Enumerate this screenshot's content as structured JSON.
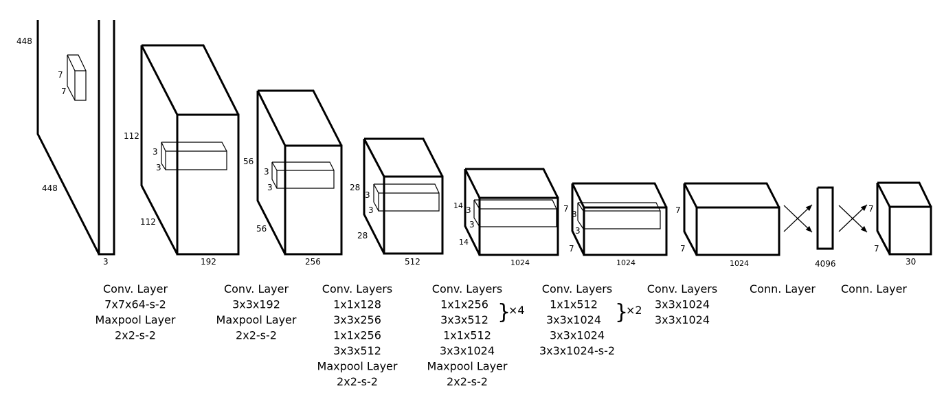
{
  "input": {
    "height": "448",
    "width": "448",
    "channels": "3",
    "kernel_h": "7",
    "kernel_w": "7"
  },
  "blocks": [
    {
      "h": "112",
      "w": "112",
      "d": "192",
      "k1": "3",
      "k2": "3"
    },
    {
      "h": "56",
      "w": "56",
      "d": "256",
      "k1": "3",
      "k2": "3"
    },
    {
      "h": "28",
      "w": "28",
      "d": "512",
      "k1": "3",
      "k2": "3"
    },
    {
      "h": "14",
      "w": "14",
      "d": "1024",
      "k1": "3",
      "k2": "3"
    },
    {
      "h": "7",
      "w": "7",
      "d": "1024",
      "k1": "3",
      "k2": "3"
    },
    {
      "h": "7",
      "w": "7",
      "d": "1024"
    },
    {
      "d": "4096"
    },
    {
      "h": "7",
      "w": "7",
      "d": "30"
    }
  ],
  "captions": [
    [
      "Conv. Layer",
      "7x7x64-s-2",
      "Maxpool Layer",
      "2x2-s-2"
    ],
    [
      "Conv. Layer",
      "3x3x192",
      "Maxpool Layer",
      "2x2-s-2"
    ],
    [
      "Conv. Layers",
      "1x1x128",
      "3x3x256",
      "1x1x256",
      "3x3x512",
      "Maxpool Layer",
      "2x2-s-2"
    ],
    [
      "Conv. Layers",
      "1x1x256",
      "3x3x512",
      "1x1x512",
      "3x3x1024",
      "Maxpool Layer",
      "2x2-s-2"
    ],
    [
      "Conv. Layers",
      "1x1x512",
      "3x3x1024",
      "3x3x1024",
      "3x3x1024-s-2"
    ],
    [
      "Conv. Layers",
      "3x3x1024",
      "3x3x1024"
    ],
    [
      "Conn. Layer"
    ],
    [
      "Conn. Layer"
    ]
  ],
  "repeats": [
    {
      "brace": "}",
      "count": "×4"
    },
    {
      "brace": "}",
      "count": "×2"
    }
  ]
}
